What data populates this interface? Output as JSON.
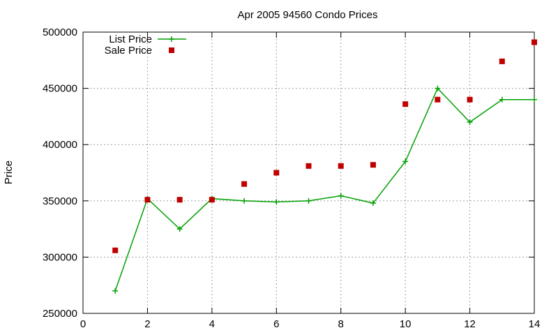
{
  "chart_data": {
    "type": "line",
    "title": "Apr 2005 94560 Condo Prices",
    "xlabel": "",
    "ylabel": "Price",
    "xlim": [
      0,
      14
    ],
    "ylim": [
      250000,
      500000
    ],
    "x_ticks": [
      0,
      2,
      4,
      6,
      8,
      10,
      12,
      14
    ],
    "y_ticks": [
      250000,
      300000,
      350000,
      400000,
      450000,
      500000
    ],
    "grid": true,
    "legend_position": "top-left",
    "series": [
      {
        "name": "List Price",
        "style": "line-points",
        "marker": "plus",
        "color": "#00a000",
        "x": [
          1,
          2,
          3,
          4,
          5,
          6,
          7,
          8,
          9,
          10,
          11,
          12,
          13,
          14
        ],
        "y": [
          270000,
          352000,
          325000,
          352000,
          350000,
          349000,
          350000,
          354500,
          348000,
          385000,
          450000,
          420000,
          440000,
          440000
        ]
      },
      {
        "name": "Sale Price",
        "style": "points",
        "marker": "square",
        "color": "#c00000",
        "x": [
          1,
          2,
          3,
          4,
          5,
          6,
          7,
          8,
          9,
          10,
          11,
          12,
          13,
          14
        ],
        "y": [
          306000,
          351000,
          351000,
          351000,
          365000,
          375000,
          381000,
          381000,
          382000,
          436000,
          440000,
          440000,
          474000,
          491000
        ]
      }
    ]
  }
}
